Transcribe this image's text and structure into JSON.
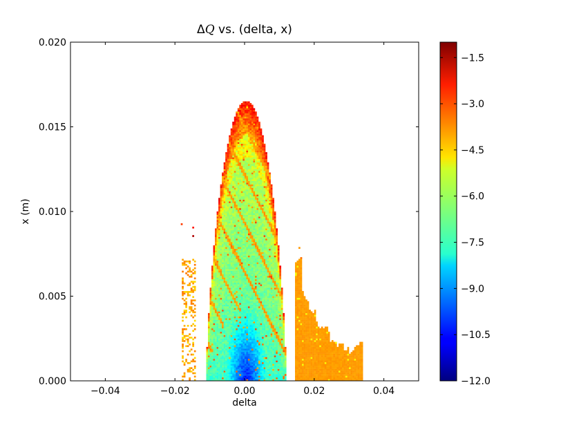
{
  "chart_data": {
    "type": "heatmap",
    "title_prefix": "Δ",
    "title_symbol": "Q",
    "title_suffix": " vs. (delta, x)",
    "xlabel": "delta",
    "ylabel": "x (m)",
    "xlim": [
      -0.05,
      0.05
    ],
    "ylim": [
      0.0,
      0.02
    ],
    "xticks": [
      -0.04,
      -0.02,
      0.0,
      0.02,
      0.04
    ],
    "xtick_labels": [
      "−0.04",
      "−0.02",
      "0.00",
      "0.02",
      "0.04"
    ],
    "yticks": [
      0.0,
      0.005,
      0.01,
      0.015,
      0.02
    ],
    "ytick_labels": [
      "0.000",
      "0.005",
      "0.010",
      "0.015",
      "0.020"
    ],
    "colorbar": {
      "colormap": "jet",
      "range": [
        -12.0,
        -1.0
      ],
      "ticks": [
        -1.5,
        -3.0,
        -4.5,
        -6.0,
        -7.5,
        -9.0,
        -10.5,
        -12.0
      ],
      "tick_labels": [
        "−1.5",
        "−3.0",
        "−4.5",
        "−6.0",
        "−7.5",
        "−9.0",
        "−10.5",
        "−12.0"
      ]
    },
    "grid": false,
    "regions": [
      {
        "name": "main-lobe",
        "delta_range": [
          -0.011,
          0.012
        ],
        "x_max_at_center": 0.016,
        "value_range": [
          -11.5,
          -2.5
        ]
      },
      {
        "name": "left-strip",
        "delta_range": [
          -0.018,
          -0.014
        ],
        "x_max": 0.0092,
        "value_typical": -4.0
      },
      {
        "name": "right-fringe",
        "delta_range": [
          0.0145,
          0.034
        ],
        "x_max": 0.0078,
        "value_typical": -4.0
      }
    ]
  }
}
